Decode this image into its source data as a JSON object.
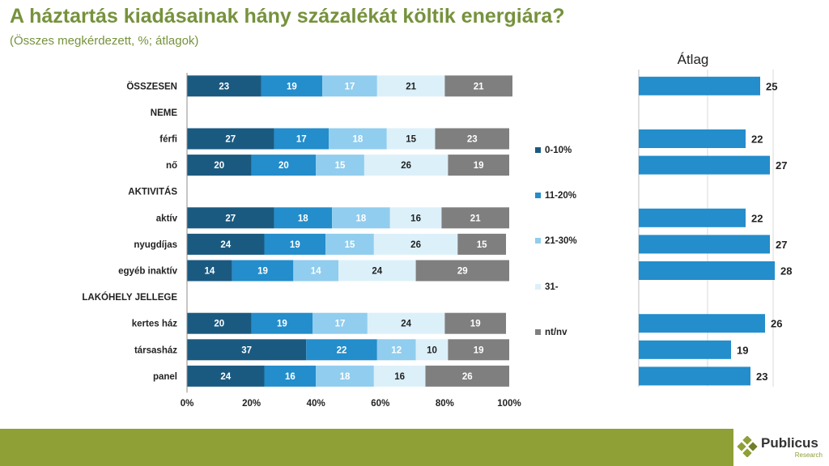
{
  "header": {
    "title": "A háztartás kiadásainak hány százalékát költik energiára?",
    "subtitle": "(Összes megkérdezett, %; átlagok)"
  },
  "logo": {
    "name": "Publicus",
    "sub": "Research"
  },
  "colors": {
    "title": "#76923c",
    "footer": "#8ea036",
    "series": [
      "#1b5a80",
      "#248dcb",
      "#91cdee",
      "#dcf0fa",
      "#7f7f7f"
    ],
    "avg_bar": "#248dcb"
  },
  "chart_data": [
    {
      "type": "bar",
      "orientation": "horizontal",
      "stacked": true,
      "xlim": [
        0,
        100
      ],
      "xticks": [
        "0%",
        "20%",
        "40%",
        "60%",
        "80%",
        "100%"
      ],
      "categories": [
        "ÖSSZESEN",
        "NEME",
        "férfi",
        "nő",
        "AKTIVITÁS",
        "aktív",
        "nyugdíjas",
        "egyéb inaktív",
        "LAKÓHELY JELLEGE",
        "kertes ház",
        "társasház",
        "panel"
      ],
      "series": [
        {
          "name": "0-10%",
          "values": [
            23,
            null,
            27,
            20,
            null,
            27,
            24,
            14,
            null,
            20,
            37,
            24
          ]
        },
        {
          "name": "11-20%",
          "values": [
            19,
            null,
            17,
            20,
            null,
            18,
            19,
            19,
            null,
            19,
            22,
            16
          ]
        },
        {
          "name": "21-30%",
          "values": [
            17,
            null,
            18,
            15,
            null,
            18,
            15,
            14,
            null,
            17,
            12,
            18
          ]
        },
        {
          "name": "31-",
          "values": [
            21,
            null,
            15,
            26,
            null,
            16,
            26,
            24,
            null,
            24,
            10,
            16
          ]
        },
        {
          "name": "nt/nv",
          "values": [
            21,
            null,
            23,
            19,
            null,
            21,
            15,
            29,
            null,
            19,
            19,
            26
          ]
        }
      ],
      "legend_position": "right"
    },
    {
      "type": "bar",
      "orientation": "horizontal",
      "title": "Átlag",
      "categories": [
        "ÖSSZESEN",
        "NEME",
        "férfi",
        "nő",
        "AKTIVITÁS",
        "aktív",
        "nyugdíjas",
        "egyéb inaktív",
        "LAKÓHELY JELLEGE",
        "kertes ház",
        "társasház",
        "panel"
      ],
      "values": [
        25,
        null,
        22,
        27,
        null,
        22,
        27,
        28,
        null,
        26,
        19,
        23
      ],
      "xlim": [
        0,
        40
      ]
    }
  ]
}
